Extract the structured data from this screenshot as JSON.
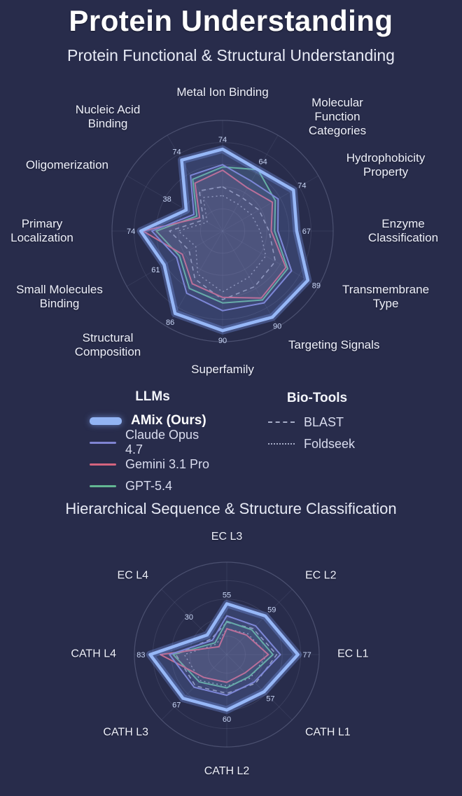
{
  "page": {
    "title": "Protein Understanding",
    "background": "#282c4b",
    "accent": "#92b4f4"
  },
  "chart_data": [
    {
      "type": "radar",
      "title": "Protein Functional & Structural Understanding",
      "max": 100,
      "rings": 5,
      "grid": "on",
      "categories": [
        "Metal Ion Binding",
        "Molecular Function Categories",
        "Hydrophobicity Property",
        "Enzyme Classification",
        "Transmembrane Type",
        "Targeting Signals",
        "Superfamily",
        "Structural Composition",
        "Small Molecules Binding",
        "Primary Localization",
        "Oligomerization",
        "Nucleic Acid Binding"
      ],
      "series": [
        {
          "name": "AMix (Ours)",
          "color": "#96b7f7",
          "width": 4.5,
          "fill": "rgba(115,150,235,0.20)",
          "emphasis": true,
          "show_values": true,
          "values": [
            74,
            64,
            74,
            67,
            89,
            90,
            90,
            86,
            61,
            74,
            38,
            74
          ]
        },
        {
          "name": "Claude Opus 4.7",
          "color": "#8084d2",
          "width": 2,
          "fill": "rgba(128,132,210,0.10)",
          "values": [
            60,
            52,
            58,
            50,
            72,
            75,
            72,
            65,
            48,
            64,
            30,
            58
          ]
        },
        {
          "name": "Gemini 3.1 Pro",
          "color": "#d5647e",
          "width": 2,
          "fill": "rgba(213,100,126,0.10)",
          "values": [
            55,
            45,
            52,
            44,
            66,
            70,
            60,
            55,
            42,
            72,
            24,
            50
          ]
        },
        {
          "name": "GPT-5.4",
          "color": "#63b793",
          "width": 2,
          "fill": "rgba(99,183,147,0.10)",
          "values": [
            58,
            64,
            55,
            47,
            68,
            72,
            65,
            60,
            45,
            60,
            27,
            54
          ]
        },
        {
          "name": "BLAST",
          "color": "#9ba1bd",
          "width": 1.6,
          "dash": "6,5",
          "values": [
            40,
            35,
            38,
            42,
            55,
            58,
            62,
            50,
            35,
            48,
            20,
            42
          ]
        },
        {
          "name": "Foldseek",
          "color": "#9ba1bd",
          "width": 1.4,
          "dash": "2,4",
          "values": [
            32,
            28,
            30,
            34,
            45,
            48,
            55,
            45,
            28,
            40,
            16,
            35
          ]
        }
      ]
    },
    {
      "type": "radar",
      "title": "Hierarchical Sequence & Structure Classification",
      "max": 100,
      "rings": 5,
      "grid": "on",
      "categories": [
        "EC L3",
        "EC L2",
        "EC L1",
        "CATH L1",
        "CATH L2",
        "CATH L3",
        "CATH L4",
        "EC L4"
      ],
      "series": [
        {
          "name": "AMix (Ours)",
          "color": "#96b7f7",
          "width": 4.5,
          "fill": "rgba(115,150,235,0.20)",
          "emphasis": true,
          "show_values": true,
          "values": [
            55,
            59,
            77,
            57,
            60,
            67,
            83,
            30
          ]
        },
        {
          "name": "Claude Opus 4.7",
          "color": "#8084d2",
          "width": 2,
          "fill": "rgba(128,132,210,0.10)",
          "values": [
            42,
            44,
            58,
            42,
            44,
            50,
            62,
            22
          ]
        },
        {
          "name": "Gemini 3.1 Pro",
          "color": "#d5647e",
          "width": 2,
          "fill": "rgba(213,100,126,0.10)",
          "values": [
            28,
            30,
            45,
            28,
            30,
            35,
            72,
            12
          ]
        },
        {
          "name": "GPT-5.4",
          "color": "#63b793",
          "width": 2,
          "fill": "rgba(99,183,147,0.10)",
          "values": [
            36,
            38,
            50,
            34,
            36,
            42,
            58,
            18
          ]
        },
        {
          "name": "BLAST",
          "color": "#9ba1bd",
          "width": 1.6,
          "dash": "6,5",
          "values": [
            35,
            40,
            54,
            44,
            42,
            48,
            55,
            24
          ]
        },
        {
          "name": "Foldseek",
          "color": "#9ba1bd",
          "width": 1.4,
          "dash": "2,4",
          "values": [
            28,
            32,
            44,
            36,
            34,
            40,
            46,
            16
          ]
        }
      ]
    }
  ],
  "legend": {
    "groups": [
      {
        "title": "LLMs",
        "items": [
          {
            "label": "AMix (Ours)",
            "swatch": "thick",
            "color": "#92b4f4",
            "primary": true
          },
          {
            "label": "Claude Opus 4.7",
            "swatch": "line",
            "color": "#8084d2"
          },
          {
            "label": "Gemini 3.1 Pro",
            "swatch": "line",
            "color": "#d5647e"
          },
          {
            "label": "GPT-5.4",
            "swatch": "line",
            "color": "#63b793"
          }
        ]
      },
      {
        "title": "Bio-Tools",
        "items": [
          {
            "label": "BLAST",
            "swatch": "dashed",
            "color": "#a8aec8"
          },
          {
            "label": "Foldseek",
            "swatch": "dotted",
            "color": "#a8aec8"
          }
        ]
      }
    ]
  }
}
